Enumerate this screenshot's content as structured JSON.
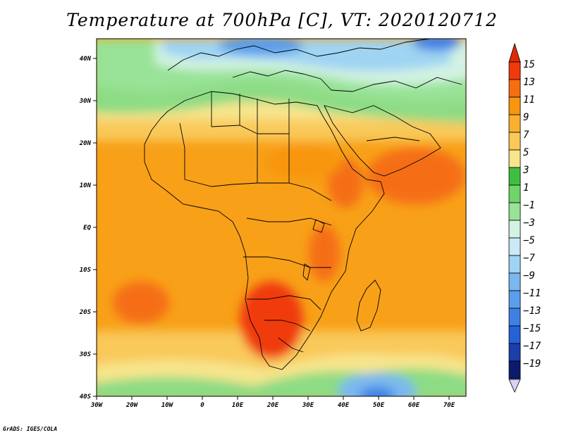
{
  "title": "Temperature at 700hPa [C], VT: 2020120712",
  "credit": "GrADS: IGES/COLA",
  "map": {
    "projection": "latlon",
    "lon_range": [
      -30,
      75
    ],
    "lat_range": [
      -40,
      45
    ],
    "lon_ticks": [
      "30W",
      "20W",
      "10W",
      "0",
      "10E",
      "20E",
      "30E",
      "40E",
      "50E",
      "60E",
      "70E"
    ],
    "lat_ticks": [
      "40N",
      "30N",
      "20N",
      "10N",
      "EQ",
      "10S",
      "20S",
      "30S",
      "40S"
    ],
    "field": "Temperature at 700hPa",
    "units": "C"
  },
  "colorbar": {
    "labels": [
      "15",
      "13",
      "11",
      "9",
      "7",
      "5",
      "3",
      "1",
      "−1",
      "−3",
      "−5",
      "−7",
      "−9",
      "−11",
      "−13",
      "−15",
      "−17",
      "−19"
    ],
    "colors": [
      "#f03a0c",
      "#f56e12",
      "#f8960f",
      "#f9b030",
      "#f9c95a",
      "#f7e58c",
      "#3fbf3f",
      "#6fd46a",
      "#98e397",
      "#d4f3e3",
      "#cbe9f7",
      "#9fd4f3",
      "#7ab8ef",
      "#5a9eec",
      "#3e80e4",
      "#2561d7",
      "#1a3faa",
      "#0c1a6e"
    ],
    "over_color": "#e02a08",
    "under_color": "#d8d4f8"
  }
}
